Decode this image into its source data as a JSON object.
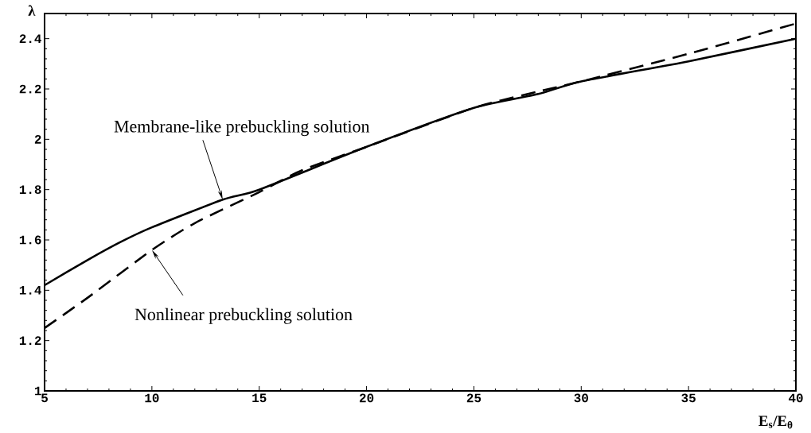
{
  "chart_data": {
    "type": "line",
    "xlabel": "E$_{s}$/E$_{θ}$",
    "ylabel": "λ",
    "xlim": [
      5,
      40
    ],
    "ylim": [
      1,
      2.5
    ],
    "xticks": [
      5,
      10,
      15,
      20,
      25,
      30,
      35,
      40
    ],
    "yticks": [
      1,
      1.2,
      1.4,
      1.6,
      1.8,
      2,
      2.2,
      2.4
    ],
    "grid": false,
    "marker": "none",
    "series": [
      {
        "color": "#000000",
        "line_style": "solid",
        "x": [
          5,
          7,
          8.5,
          10,
          13.3,
          15,
          20,
          25,
          28,
          30,
          35,
          40
        ],
        "values": [
          1.42,
          1.52,
          1.59,
          1.65,
          1.76,
          1.8,
          1.97,
          2.125,
          2.18,
          2.23,
          2.31,
          2.4
        ]
      },
      {
        "color": "#000000",
        "line_style": "dashed",
        "x": [
          5,
          7,
          10,
          12,
          15,
          17,
          20,
          25,
          28,
          30,
          35,
          40
        ],
        "values": [
          1.25,
          1.37,
          1.56,
          1.667,
          1.79,
          1.877,
          1.97,
          2.125,
          2.19,
          2.23,
          2.34,
          2.46
        ]
      }
    ],
    "annotations": [
      {
        "text": "Membrane-like prebuckling solution",
        "x": 13.3,
        "y": 1.76
      },
      {
        "text": "Nonlinear prebuckling solution",
        "x": 10,
        "y": 1.56
      }
    ]
  }
}
